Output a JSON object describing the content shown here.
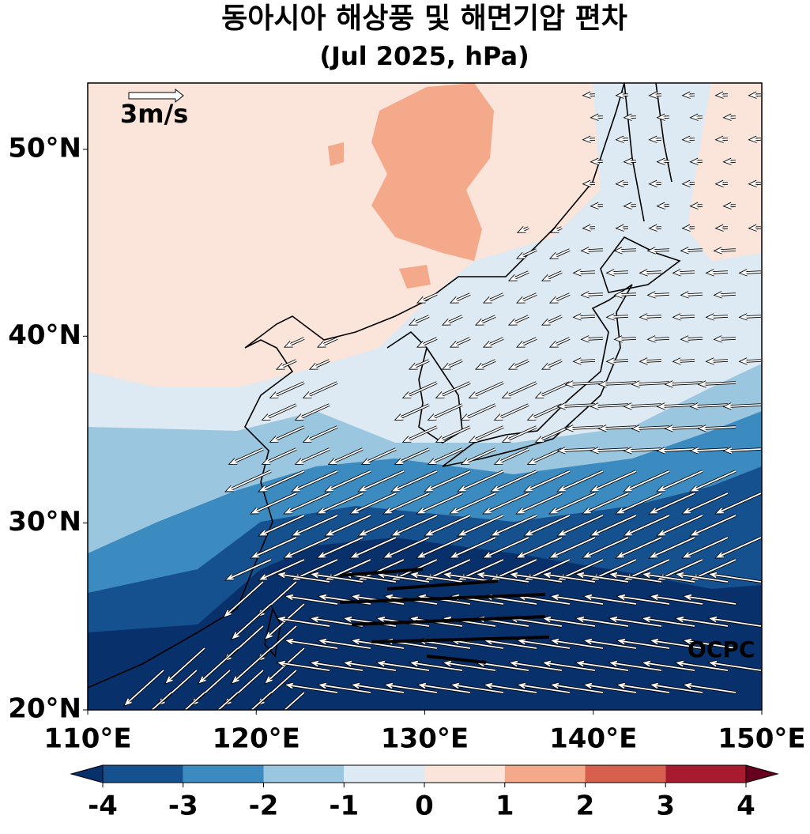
{
  "title": "동아시아 해상풍 및 해면기압 편차",
  "subtitle": "(Jul 2025, hPa)",
  "map": {
    "xlim": [
      110,
      150
    ],
    "ylim": [
      20,
      53.55
    ],
    "xticks": [
      {
        "value": 110,
        "label": "110°E"
      },
      {
        "value": 120,
        "label": "120°E"
      },
      {
        "value": 130,
        "label": "130°E"
      },
      {
        "value": 140,
        "label": "140°E"
      },
      {
        "value": 150,
        "label": "150°E"
      }
    ],
    "yticks": [
      {
        "value": 20,
        "label": "20°N"
      },
      {
        "value": 30,
        "label": "30°N"
      },
      {
        "value": 40,
        "label": "40°N"
      },
      {
        "value": 50,
        "label": "50°N"
      }
    ]
  },
  "reference_vector": "3m/s",
  "credit": "OCPC",
  "colorbar": {
    "lim": [
      -4,
      4
    ],
    "ticks": [
      -4,
      -3,
      -2,
      -1,
      0,
      1,
      2,
      3,
      4
    ],
    "colors": [
      "#08306b",
      "#15508f",
      "#3c8bc0",
      "#9ac6df",
      "#deeaf3",
      "#fbe4d9",
      "#f4a98a",
      "#d6604d",
      "#a81a2d",
      "#67001f"
    ]
  }
}
